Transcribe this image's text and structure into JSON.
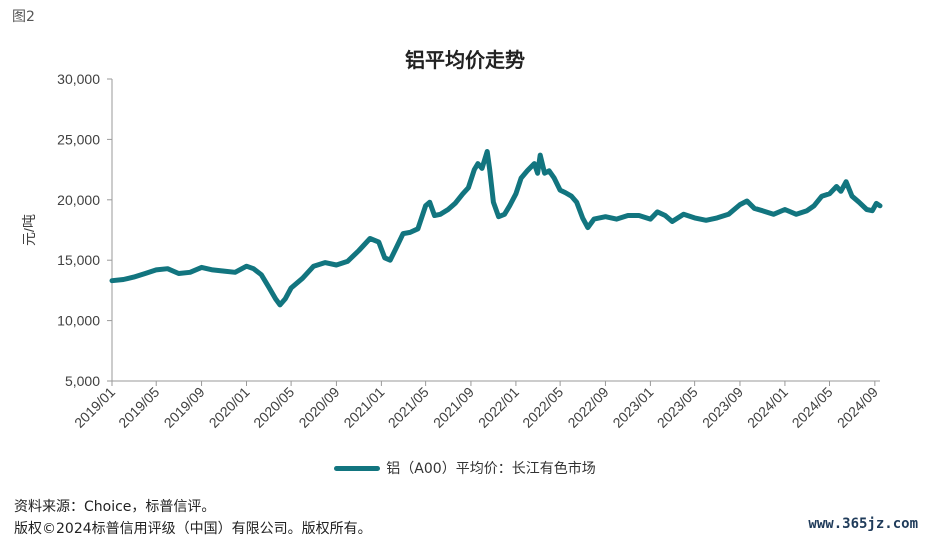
{
  "figure_label": "图2",
  "chart_data": {
    "type": "line",
    "title": "铝平均价走势",
    "ylabel": "元/吨",
    "xlabel": "",
    "ylim": [
      5000,
      30000
    ],
    "yticks": [
      "5,000",
      "10,000",
      "15,000",
      "20,000",
      "25,000",
      "30,000"
    ],
    "ytick_values": [
      5000,
      10000,
      15000,
      20000,
      25000,
      30000
    ],
    "xticks": [
      "2019/01",
      "2019/05",
      "2019/09",
      "2020/01",
      "2020/05",
      "2020/09",
      "2021/01",
      "2021/05",
      "2021/09",
      "2022/01",
      "2022/05",
      "2022/09",
      "2023/01",
      "2023/05",
      "2023/09",
      "2024/01",
      "2024/05",
      "2024/09"
    ],
    "xrange": [
      "2019-01-01",
      "2024-09-15"
    ],
    "grid": false,
    "legend_position": "bottom",
    "series": [
      {
        "name": "铝（A00）平均价：长江有色市场",
        "color": "#12757f",
        "x": [
          "2019-01-01",
          "2019-02-01",
          "2019-03-01",
          "2019-04-01",
          "2019-05-01",
          "2019-06-01",
          "2019-07-01",
          "2019-08-01",
          "2019-09-01",
          "2019-10-01",
          "2019-11-01",
          "2019-12-01",
          "2020-01-01",
          "2020-01-20",
          "2020-02-10",
          "2020-03-01",
          "2020-03-20",
          "2020-04-01",
          "2020-04-15",
          "2020-05-01",
          "2020-06-01",
          "2020-07-01",
          "2020-08-01",
          "2020-09-01",
          "2020-10-01",
          "2020-11-01",
          "2020-12-01",
          "2020-12-25",
          "2021-01-10",
          "2021-01-25",
          "2021-02-10",
          "2021-03-01",
          "2021-03-20",
          "2021-04-10",
          "2021-05-01",
          "2021-05-12",
          "2021-05-25",
          "2021-06-10",
          "2021-07-01",
          "2021-07-20",
          "2021-08-10",
          "2021-08-25",
          "2021-09-10",
          "2021-09-20",
          "2021-10-01",
          "2021-10-15",
          "2021-10-22",
          "2021-11-01",
          "2021-11-15",
          "2021-12-01",
          "2021-12-15",
          "2022-01-01",
          "2022-01-15",
          "2022-02-01",
          "2022-02-20",
          "2022-03-01",
          "2022-03-08",
          "2022-03-20",
          "2022-04-01",
          "2022-04-15",
          "2022-05-01",
          "2022-05-15",
          "2022-06-01",
          "2022-06-15",
          "2022-07-01",
          "2022-07-15",
          "2022-08-01",
          "2022-09-01",
          "2022-10-01",
          "2022-11-01",
          "2022-12-01",
          "2023-01-01",
          "2023-01-20",
          "2023-02-10",
          "2023-03-01",
          "2023-04-01",
          "2023-05-01",
          "2023-06-01",
          "2023-07-01",
          "2023-08-01",
          "2023-09-01",
          "2023-09-20",
          "2023-10-10",
          "2023-11-01",
          "2023-12-01",
          "2024-01-01",
          "2024-02-01",
          "2024-03-01",
          "2024-03-20",
          "2024-04-10",
          "2024-05-01",
          "2024-05-20",
          "2024-06-01",
          "2024-06-15",
          "2024-07-01",
          "2024-07-20",
          "2024-08-10",
          "2024-08-25",
          "2024-09-05",
          "2024-09-15"
        ],
        "values": [
          13300,
          13400,
          13600,
          13900,
          14200,
          14300,
          13900,
          14000,
          14400,
          14200,
          14100,
          14000,
          14500,
          14300,
          13800,
          12800,
          11800,
          11300,
          11800,
          12700,
          13500,
          14500,
          14800,
          14600,
          14900,
          15800,
          16800,
          16500,
          15200,
          15000,
          16000,
          17200,
          17300,
          17600,
          19500,
          19800,
          18700,
          18800,
          19200,
          19700,
          20500,
          21000,
          22500,
          23000,
          22600,
          24000,
          22500,
          19800,
          18600,
          18800,
          19500,
          20500,
          21800,
          22400,
          23000,
          22200,
          23700,
          22200,
          22400,
          21800,
          20800,
          20600,
          20300,
          19800,
          18500,
          17700,
          18400,
          18600,
          18400,
          18700,
          18700,
          18400,
          19000,
          18700,
          18200,
          18800,
          18500,
          18300,
          18500,
          18800,
          19600,
          19900,
          19300,
          19100,
          18800,
          19200,
          18800,
          19100,
          19500,
          20300,
          20500,
          21100,
          20700,
          21500,
          20300,
          19800,
          19200,
          19100,
          19700,
          19500
        ]
      }
    ]
  },
  "footer": {
    "source": "资料来源：Choice，标普信评。",
    "copyright": "版权©2024标普信用评级（中国）有限公司。版权所有。"
  },
  "watermark": "www.365jz.com"
}
